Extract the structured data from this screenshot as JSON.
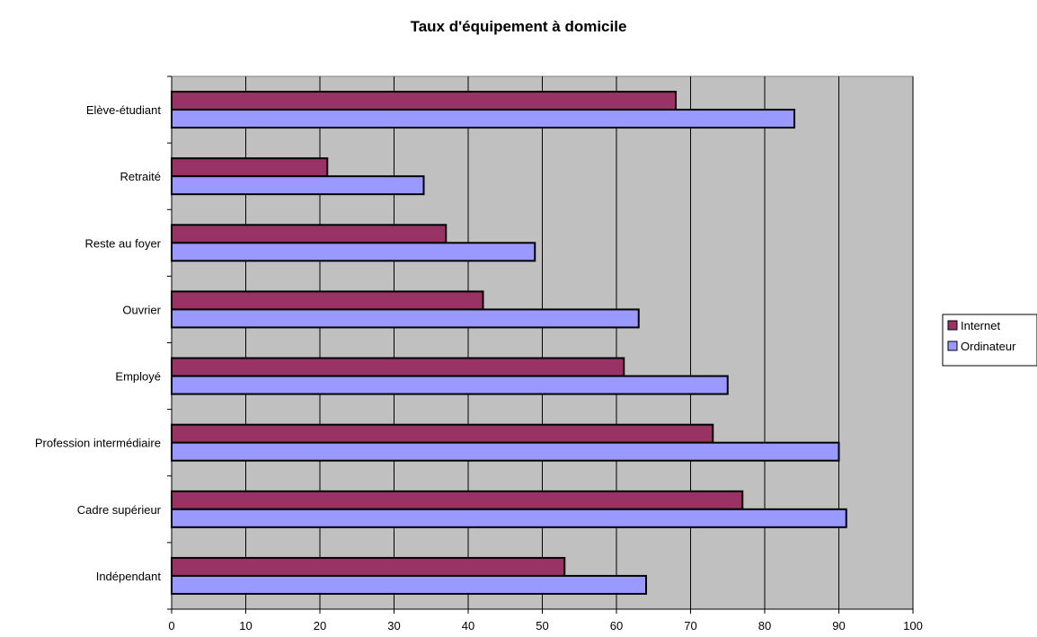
{
  "chart_data": {
    "type": "bar",
    "orientation": "horizontal",
    "title": "Taux d'équipement à domicile",
    "categories": [
      "Elève-étudiant",
      "Retraité",
      "Reste au foyer",
      "Ouvrier",
      "Employé",
      "Profession intermédiaire",
      "Cadre supérieur",
      "Indépendant"
    ],
    "series": [
      {
        "name": "Internet",
        "color": "#993366",
        "values": [
          68,
          21,
          37,
          42,
          61,
          73,
          77,
          53
        ]
      },
      {
        "name": "Ordinateur",
        "color": "#9999ff",
        "values": [
          84,
          34,
          49,
          63,
          75,
          90,
          91,
          64
        ]
      }
    ],
    "xlim": [
      0,
      100
    ],
    "x_ticks": [
      0,
      10,
      20,
      30,
      40,
      50,
      60,
      70,
      80,
      90,
      100
    ],
    "grid": "vertical",
    "plot_background": "#c0c0c0",
    "legend_position": "right"
  }
}
